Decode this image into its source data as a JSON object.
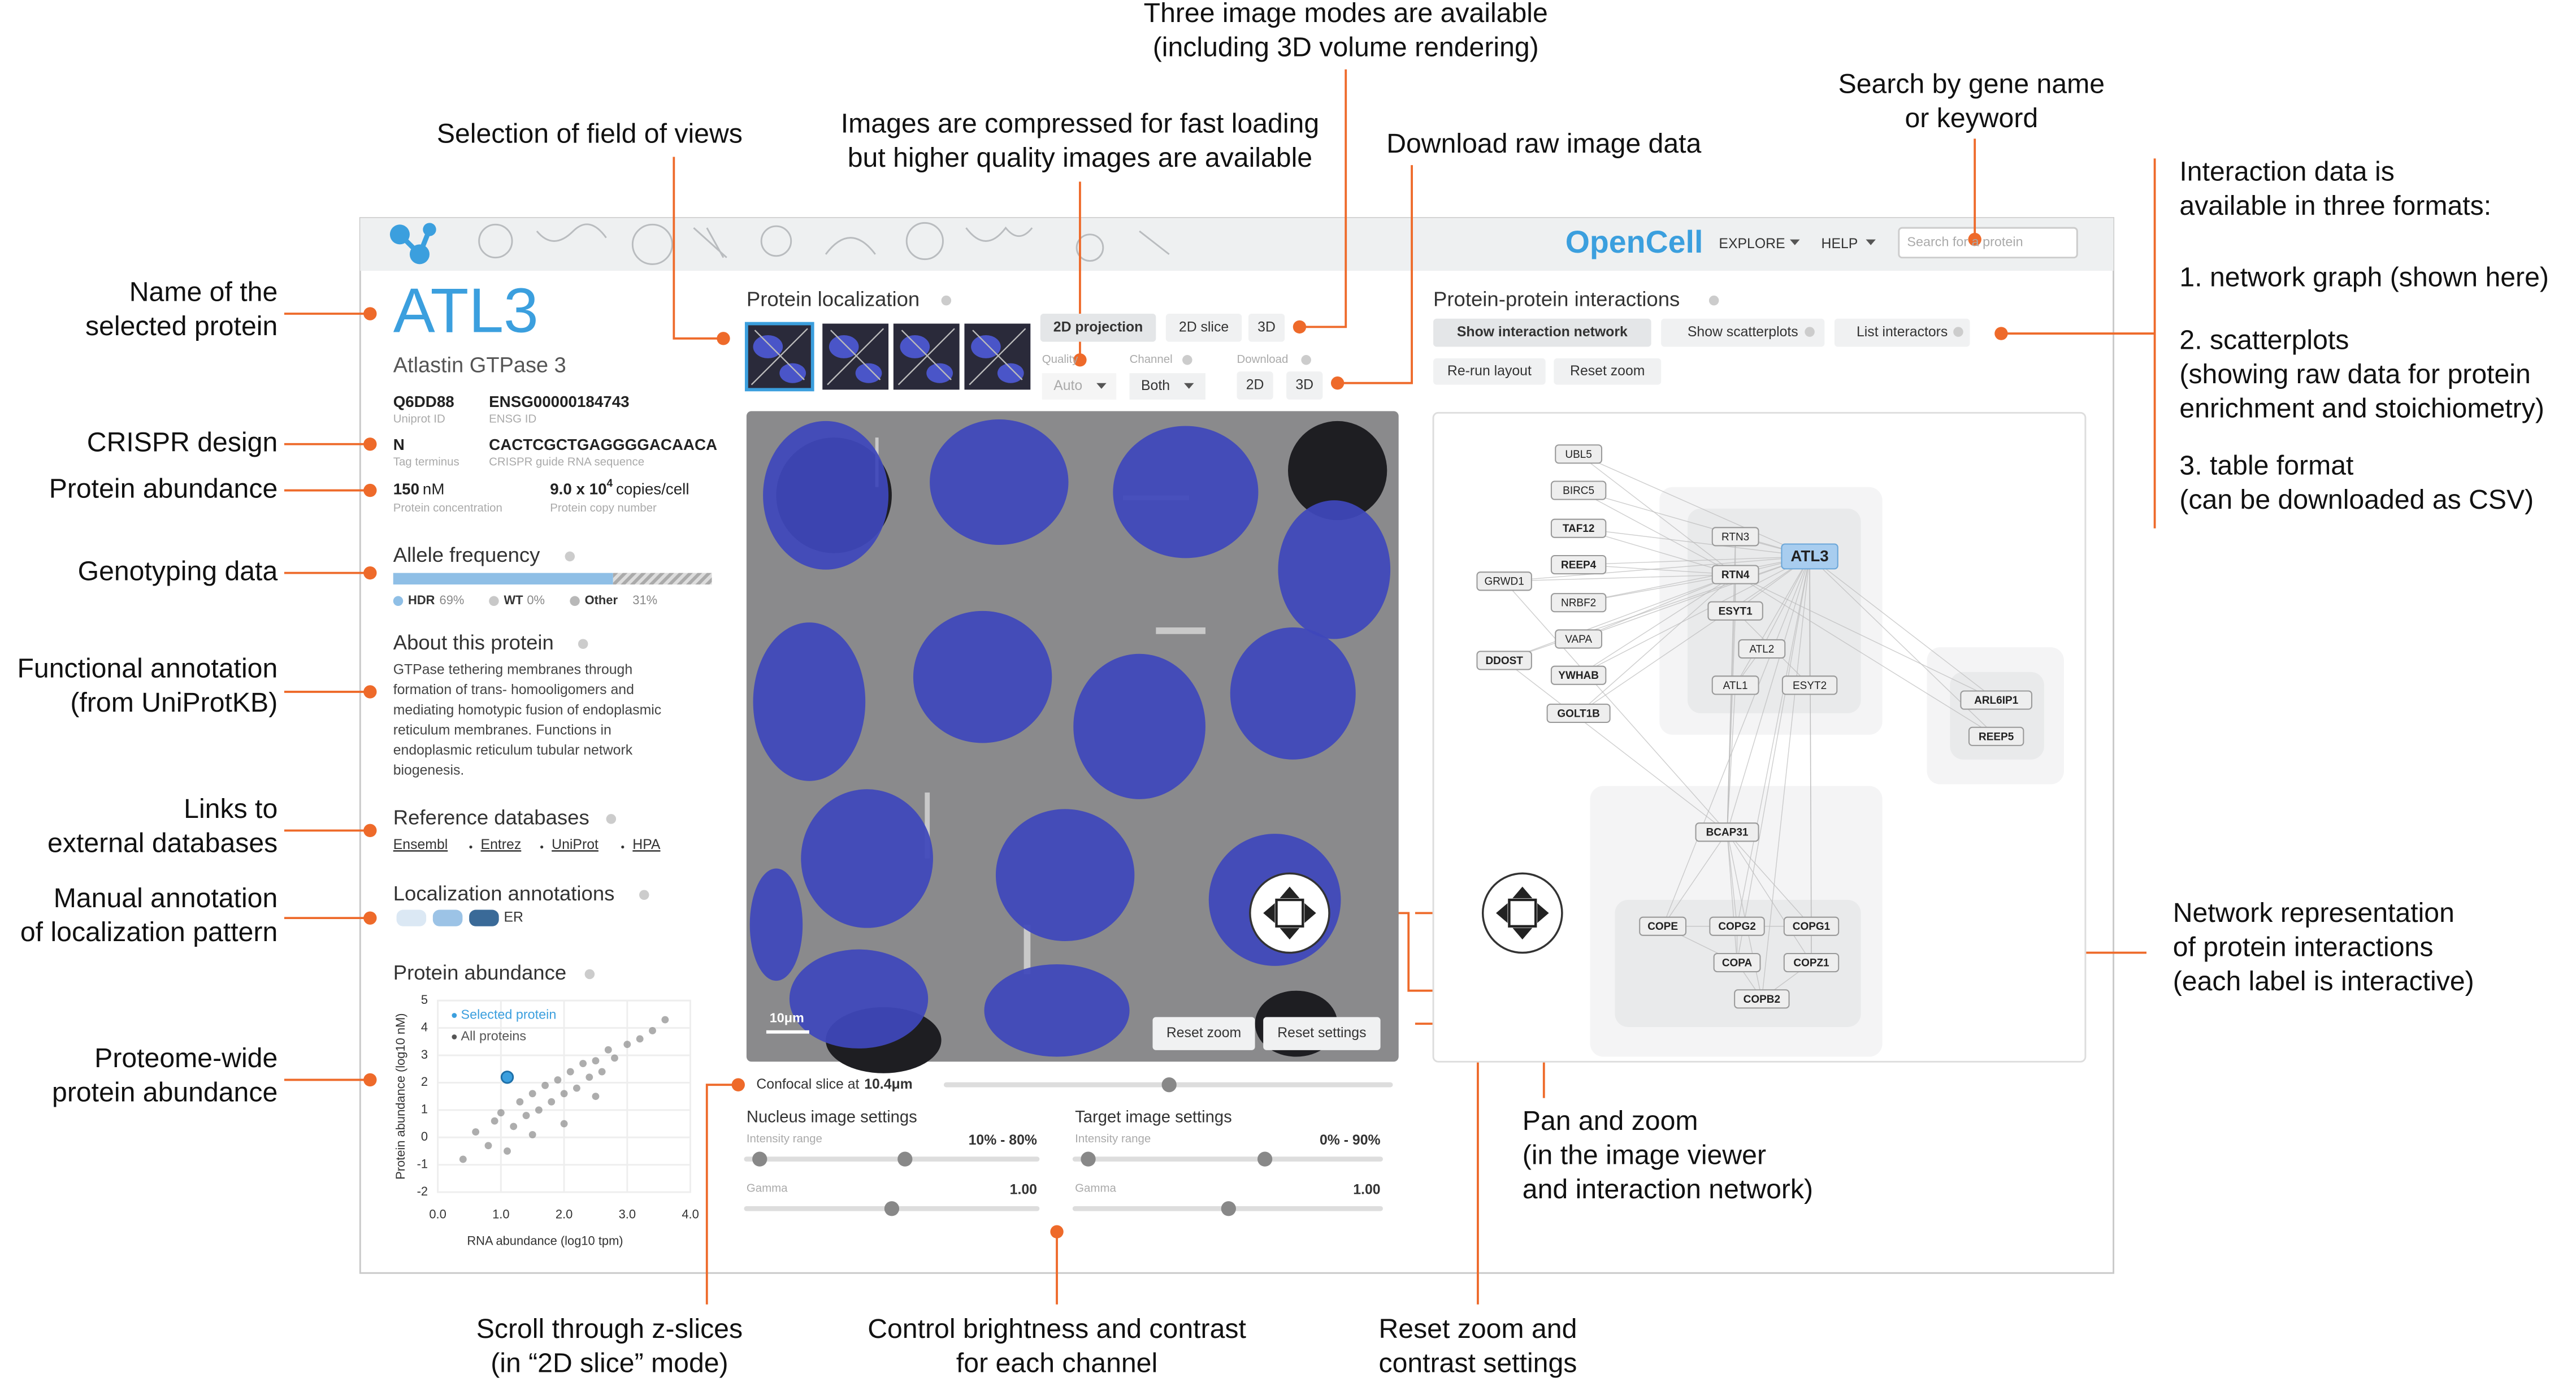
{
  "callouts": [
    [
      "Name of the",
      "selected protein"
    ],
    [
      "CRISPR design"
    ],
    [
      "Protein abundance"
    ],
    [
      "Genotyping data"
    ],
    [
      "Functional annotation",
      "(from UniProtKB)"
    ],
    [
      "Links to",
      "external databases"
    ],
    [
      "Manual annotation",
      "of localization pattern"
    ],
    [
      "Proteome-wide",
      "protein abundance"
    ],
    [
      "Selection of field of views"
    ],
    [
      "Images are compressed for fast loading",
      "but higher quality images are available"
    ],
    [
      "Three image modes are available",
      "(including 3D volume rendering)"
    ],
    [
      "Download raw image data"
    ],
    [
      "Search by gene name",
      "or keyword"
    ],
    [
      "Interaction data is",
      "available in three formats:"
    ],
    [
      "1. network graph (shown here)"
    ],
    [
      "2. scatterplots",
      "(showing raw data for protein",
      "enrichment and stoichiometry)"
    ],
    [
      "3. table format",
      "(can be downloaded as CSV)"
    ],
    [
      "Network representation",
      "of protein interactions",
      "(each label is interactive)"
    ],
    [
      "Pan and zoom",
      "(in the image viewer",
      "and interaction network)"
    ],
    [
      "Scroll through z-slices",
      "(in “2D slice” mode)"
    ],
    [
      "Control brightness and contrast",
      "for each channel"
    ],
    [
      "Reset zoom and",
      "contrast settings"
    ]
  ],
  "app": {
    "header": {
      "brand": "OpenCell",
      "menu": [
        "EXPLORE",
        "HELP"
      ],
      "search_placeholder": "Search for a protein"
    },
    "protein": {
      "gene": "ATL3",
      "description": "Atlastin GTPase 3",
      "fields": [
        {
          "value": "Q6DD88",
          "label": "Uniprot ID"
        },
        {
          "value": "ENSG00000184743",
          "label": "ENSG ID"
        },
        {
          "value": "N",
          "label": "Tag terminus"
        },
        {
          "value": "CACTCGCTGAGGGGACAACA",
          "label": "CRISPR guide RNA sequence"
        }
      ],
      "concentration": {
        "value": "150",
        "unit": "nM",
        "label": "Protein concentration"
      },
      "copy_number": {
        "mantissa": "9.0 x 10",
        "exponent": "4",
        "unit": "copies/cell",
        "label": "Protein copy number"
      }
    },
    "allele_frequency": {
      "title": "Allele frequency",
      "categories": [
        "HDR",
        "WT",
        "Other"
      ],
      "values": [
        69,
        0,
        31
      ],
      "value_labels": [
        "69%",
        "0%",
        "31%"
      ],
      "colors": [
        "#8fbfe6",
        "#c8c8c8",
        "#b8b8b8"
      ]
    },
    "about": {
      "title": "About this protein",
      "lines": [
        "GTPase tethering membranes through",
        "formation of trans- homooligomers and",
        "mediating homotypic fusion of endoplasmic",
        "reticulum membranes. Functions in",
        "endoplasmic reticulum tubular network",
        "biogenesis."
      ]
    },
    "references": {
      "title": "Reference databases",
      "links": [
        "Ensembl",
        "Entrez",
        "UniProt",
        "HPA"
      ]
    },
    "localization": {
      "title": "Localization annotations",
      "labels": [
        "ER"
      ]
    },
    "abundance_plot": {
      "type": "scatter",
      "title": "Protein abundance",
      "legend": [
        "Selected protein",
        "All proteins"
      ],
      "xlabel": "RNA abundance (log10 tpm)",
      "ylabel": "Protein abundance (log10 nM)",
      "xlim": [
        0,
        4
      ],
      "ylim": [
        -2,
        5
      ],
      "xticks": [
        {
          "value": 0,
          "label": "0.0"
        },
        {
          "value": 1,
          "label": "1.0"
        },
        {
          "value": 2,
          "label": "2.0"
        },
        {
          "value": 3,
          "label": "3.0"
        },
        {
          "value": 4,
          "label": "4.0"
        }
      ],
      "yticks": [
        -2,
        -1,
        0,
        1,
        2,
        3,
        4,
        5
      ],
      "selected": {
        "x": 1.1,
        "y": 2.2,
        "color": "#3b9fde"
      },
      "all": {
        "color": "#8a8a8a",
        "x": [
          0.4,
          0.6,
          0.8,
          0.9,
          1.0,
          1.2,
          1.3,
          1.4,
          1.5,
          1.6,
          1.7,
          1.8,
          1.9,
          2.0,
          2.1,
          2.2,
          2.3,
          2.4,
          2.5,
          2.6,
          2.7,
          2.8,
          3.0,
          3.2,
          3.4,
          3.6,
          1.1,
          1.5,
          2.0,
          2.5
        ],
        "y": [
          -0.8,
          0.2,
          -0.3,
          0.6,
          0.9,
          0.4,
          1.3,
          0.8,
          1.6,
          1.0,
          1.9,
          1.3,
          2.1,
          1.6,
          2.4,
          1.8,
          2.7,
          2.2,
          2.8,
          2.4,
          3.2,
          2.9,
          3.4,
          3.6,
          3.9,
          4.3,
          -0.5,
          0.1,
          0.5,
          1.5
        ]
      }
    },
    "localization_panel": {
      "title": "Protein localization",
      "modes": [
        "2D projection",
        "2D slice",
        "3D"
      ],
      "quality": {
        "label": "Quality",
        "value": "Auto"
      },
      "channel": {
        "label": "Channel",
        "value": "Both"
      },
      "download": {
        "label": "Download",
        "options": [
          "2D",
          "3D"
        ]
      },
      "scale_bar": "10μm",
      "buttons": [
        "Reset zoom",
        "Reset settings"
      ],
      "slice": {
        "label": "Confocal slice at",
        "value": "10.4μm"
      },
      "settings": [
        {
          "title": "Nucleus image settings",
          "range_label": "Intensity range",
          "range": "10% - 80%",
          "gamma_label": "Gamma",
          "gamma": "1.00"
        },
        {
          "title": "Target image settings",
          "range_label": "Intensity range",
          "range": "0% - 90%",
          "gamma_label": "Gamma",
          "gamma": "1.00"
        }
      ]
    },
    "interactions": {
      "title": "Protein-protein interactions",
      "tabs": [
        "Show interaction network",
        "Show scatterplots",
        "List interactors"
      ],
      "buttons": [
        "Re-run layout",
        "Reset zoom"
      ],
      "nodes": [
        "UBL5",
        "BIRC5",
        "TAF12",
        "REEP4",
        "NRBF2",
        "VAPA",
        "YWHAB",
        "GOLT1B",
        "GRWD1",
        "DDOST",
        "RTN3",
        "RTN4",
        "ESYT1",
        "ATL2",
        "ATL1",
        "ESYT2",
        "ATL3",
        "ARL6IP1",
        "REEP5",
        "BCAP31",
        "COPE",
        "COPG2",
        "COPG1",
        "COPA",
        "COPZ1",
        "COPB2"
      ]
    }
  }
}
